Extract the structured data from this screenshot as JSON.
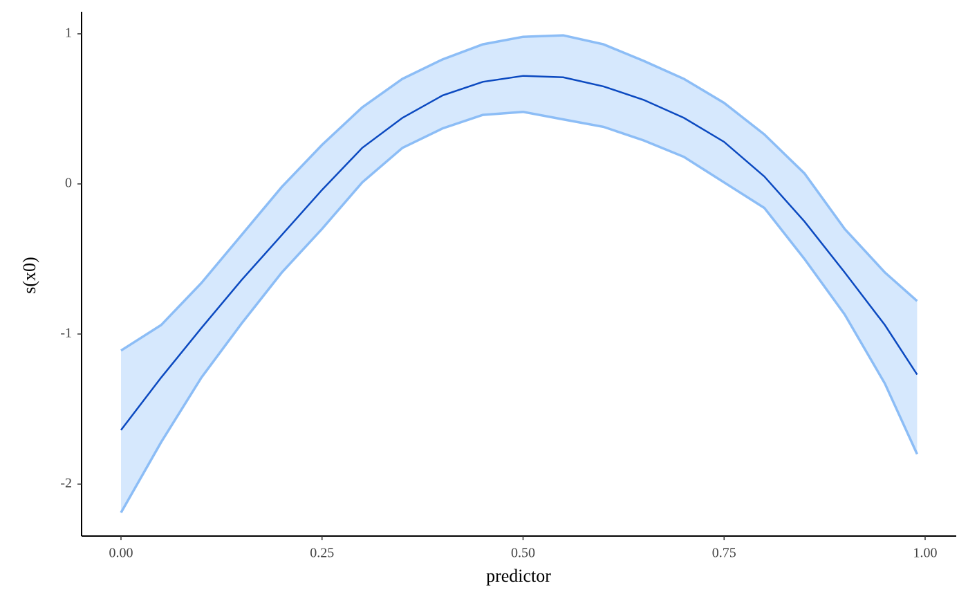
{
  "chart_data": {
    "type": "ribbon-line",
    "x_label": "predictor",
    "y_label": "s(x0)",
    "x": [
      0,
      0.05,
      0.1,
      0.15,
      0.2,
      0.25,
      0.3,
      0.35,
      0.4,
      0.45,
      0.5,
      0.55,
      0.6,
      0.65,
      0.7,
      0.75,
      0.8,
      0.85,
      0.9,
      0.95,
      0.99
    ],
    "values": [
      -1.64,
      -1.29,
      -0.96,
      -0.64,
      -0.34,
      -0.04,
      0.24,
      0.44,
      0.59,
      0.68,
      0.72,
      0.71,
      0.65,
      0.56,
      0.44,
      0.28,
      0.05,
      -0.25,
      -0.59,
      -0.94,
      -1.27
    ],
    "upper": [
      -1.11,
      -0.94,
      -0.66,
      -0.34,
      -0.02,
      0.26,
      0.51,
      0.7,
      0.83,
      0.93,
      0.98,
      0.99,
      0.93,
      0.82,
      0.7,
      0.54,
      0.33,
      0.07,
      -0.3,
      -0.59,
      -0.78
    ],
    "lower": [
      -2.19,
      -1.72,
      -1.29,
      -0.93,
      -0.59,
      -0.3,
      0.01,
      0.24,
      0.37,
      0.46,
      0.48,
      0.43,
      0.38,
      0.29,
      0.18,
      0.01,
      -0.16,
      -0.5,
      -0.87,
      -1.33,
      -1.8
    ],
    "line_color": "#0b49c0",
    "band_line_color": "#8cbdf6",
    "fill_color": "#d6e8fd",
    "xlim": [
      -0.049,
      1.0387
    ],
    "ylim": [
      -2.346,
      1.147
    ],
    "xticks": [
      {
        "value": 0,
        "label": "0.00"
      },
      {
        "value": 0.25,
        "label": "0.25"
      },
      {
        "value": 0.5,
        "label": "0.50"
      },
      {
        "value": 0.75,
        "label": "0.75"
      },
      {
        "value": 1,
        "label": "1.00"
      }
    ],
    "yticks": [
      -2,
      -1,
      0,
      1
    ]
  }
}
